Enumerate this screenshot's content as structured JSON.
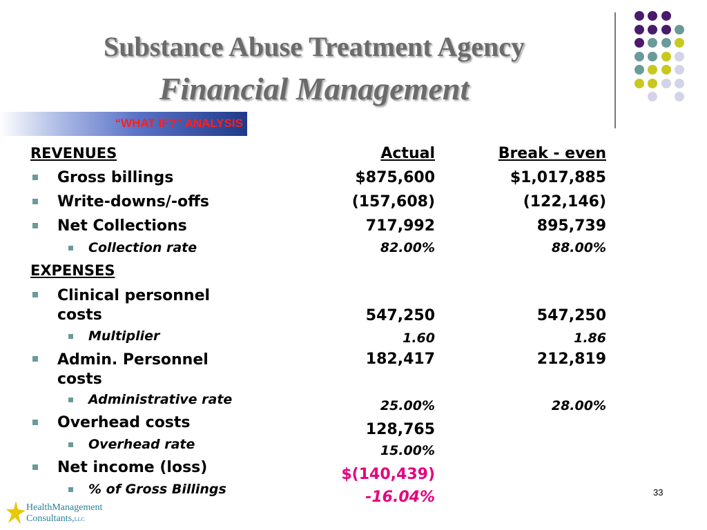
{
  "title": {
    "line1": "Substance Abuse Treatment Agency",
    "line2": "Financial Management"
  },
  "banner": "“WHAT IF?” ANALYSIS",
  "headers": {
    "revenues": "REVENUES",
    "expenses": "EXPENSES",
    "actual": "Actual",
    "breakeven": "Break - even"
  },
  "rows": {
    "gross_billings": {
      "label": "Gross billings",
      "actual": "$875,600",
      "breakeven": "$1,017,885"
    },
    "write_downs": {
      "label": "Write-downs/-offs",
      "actual": "(157,608)",
      "breakeven": "(122,146)"
    },
    "net_collections": {
      "label": "Net Collections",
      "actual": "717,992",
      "breakeven": "895,739"
    },
    "collection_rate": {
      "label": "Collection rate",
      "actual": "82.00%",
      "breakeven": "88.00%"
    },
    "clinical_personnel": {
      "label1": "Clinical personnel",
      "label2": "costs",
      "actual": "547,250",
      "breakeven": "547,250"
    },
    "multiplier": {
      "label": "Multiplier",
      "actual": "1.60",
      "breakeven": "1.86"
    },
    "admin_personnel": {
      "label1": "Admin. Personnel",
      "label2": "costs",
      "actual": "182,417",
      "breakeven": "212,819"
    },
    "administrative_rate": {
      "label": "Administrative rate",
      "actual": "25.00%",
      "breakeven": "28.00%"
    },
    "overhead_costs": {
      "label": "Overhead costs",
      "actual": "128,765"
    },
    "overhead_rate": {
      "label": "Overhead rate",
      "actual": "15.00%"
    },
    "net_income": {
      "label": "Net income (loss)",
      "actual": "$(140,439)"
    },
    "pct_gross_billings": {
      "label": "% of Gross Billings",
      "actual": "-16.04%"
    }
  },
  "page_number": "33",
  "logo": {
    "line1": "HealthManagement",
    "line2": "Consultants,",
    "suffix": "LLC"
  },
  "colors": {
    "purple": "#4a1a6b",
    "teal": "#6a9a9a",
    "lime": "#c8c820",
    "lavender": "#d4d4e8",
    "negative": "#e6007e"
  }
}
